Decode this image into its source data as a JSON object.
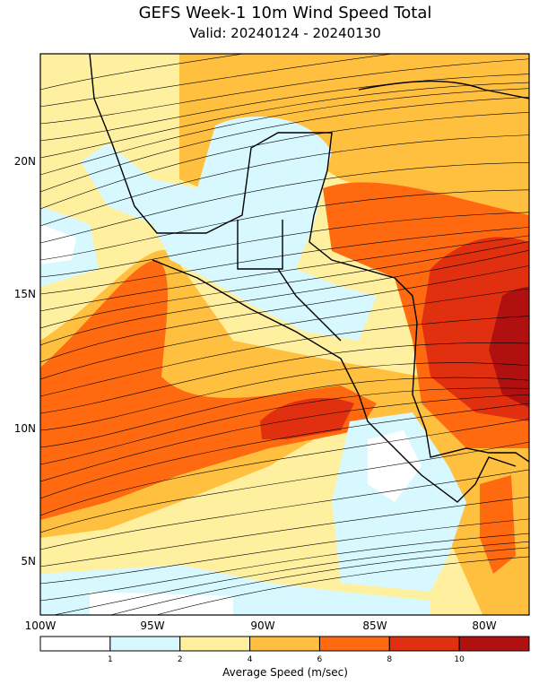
{
  "map": {
    "title": "GEFS Week-1 10m Wind Speed Total",
    "subtitle": "Valid: 20240124 - 20240130",
    "x_labels": [
      "100W",
      "95W",
      "90W",
      "85W",
      "80W"
    ],
    "y_labels": [
      "20N",
      "15N",
      "10N",
      "5N"
    ],
    "colorbar": {
      "colors": [
        "#ffffff",
        "#d8f8ff",
        "#fff0a0",
        "#ffc040",
        "#ff6a10",
        "#e03010",
        "#b01010"
      ],
      "ticks": [
        1,
        2,
        4,
        6,
        8,
        10
      ],
      "label": "Average Speed (m/sec)"
    }
  }
}
